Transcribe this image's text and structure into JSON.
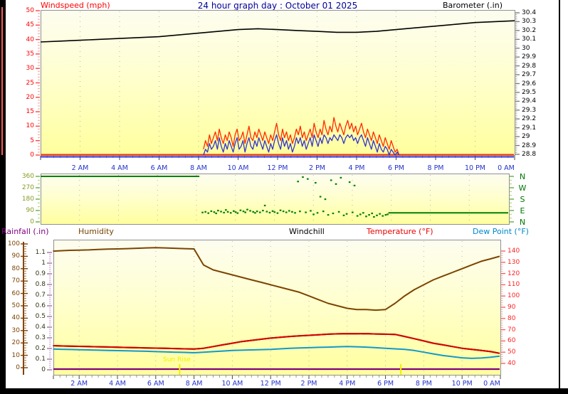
{
  "page": {
    "title": "24 hour graph day : October 01 2025"
  },
  "colors": {
    "title": "#000099",
    "windspeed_axis": "#ff0000",
    "wind_gust_line": "#ff2a00",
    "wind_avg_line": "#3333cc",
    "barometer_line": "#000000",
    "barometer_axis": "#000000",
    "x_labels": "#2233cc",
    "direction_green": "#008000",
    "direction_axis": "#8a9a20",
    "compass_letters": "#007700",
    "rainfall_purple": "#800080",
    "rainfall_axis_numbers": "#333311",
    "humidity_brown": "#7b4400",
    "windchill_black": "#000000",
    "temperature_red": "#dd0000",
    "dewpoint_blue": "#1199cc",
    "sun_marker_yellow": "#f0f000",
    "plot_bg_top": "#fdfdf0",
    "plot_bg_bottom": "#ffff9e"
  },
  "x_axis": {
    "tick_labels": [
      "2 AM",
      "4 AM",
      "6 AM",
      "8 AM",
      "10 AM",
      "12 PM",
      "2 PM",
      "4 PM",
      "6 PM",
      "8 PM",
      "10 PM",
      "0 AM"
    ],
    "tick_hours": [
      2,
      4,
      6,
      8,
      10,
      12,
      14,
      16,
      18,
      20,
      22,
      24
    ]
  },
  "chart_data": [
    {
      "id": "windspeed-barometer",
      "type": "line",
      "title": "24 hour graph day : October 01 2025",
      "left_axis": {
        "label": "Windspeed (mph)",
        "min": 0,
        "max": 50,
        "tick_labels": [
          "50",
          "45",
          "40",
          "35",
          "30",
          "25",
          "20",
          "15",
          "10",
          "5",
          "0"
        ]
      },
      "right_axis": {
        "label": "Barometer (.in)",
        "min": 28.8,
        "max": 30.4,
        "tick_labels": [
          "30.4",
          "30.3",
          "30.2",
          "30.1",
          "30",
          "29.9",
          "29.8",
          "29.7",
          "29.6",
          "29.5",
          "29.4",
          "29.3",
          "29.2",
          "29.1",
          "29",
          "28.9",
          "28.8"
        ]
      },
      "series": [
        {
          "name": "barometer",
          "color": "#000000",
          "t_start": 0,
          "t_step": 1,
          "values": [
            30.07,
            30.08,
            30.09,
            30.1,
            30.11,
            30.12,
            30.13,
            30.15,
            30.17,
            30.19,
            30.21,
            30.22,
            30.21,
            30.2,
            30.19,
            30.18,
            30.18,
            30.19,
            30.21,
            30.23,
            30.25,
            30.27,
            30.29,
            30.3,
            30.31
          ]
        },
        {
          "name": "wind-gust",
          "color": "#ff2a00",
          "t_start": 8.25,
          "t_step": 0.1,
          "values": [
            2,
            5,
            3,
            7,
            4,
            6,
            8,
            5,
            9,
            6,
            4,
            7,
            5,
            8,
            6,
            3,
            7,
            9,
            5,
            6,
            8,
            4,
            7,
            10,
            6,
            5,
            8,
            6,
            9,
            7,
            5,
            8,
            6,
            4,
            7,
            5,
            8,
            11,
            7,
            5,
            9,
            6,
            8,
            5,
            7,
            4,
            6,
            9,
            7,
            10,
            6,
            8,
            5,
            7,
            9,
            6,
            11,
            8,
            6,
            9,
            7,
            12,
            9,
            7,
            10,
            8,
            13,
            10,
            8,
            11,
            9,
            7,
            10,
            12,
            9,
            11,
            8,
            10,
            7,
            9,
            11,
            8,
            6,
            9,
            7,
            5,
            8,
            6,
            4,
            7,
            5,
            3,
            6,
            4,
            2,
            5,
            3,
            1,
            2,
            0
          ]
        },
        {
          "name": "wind-average",
          "color": "#3333cc",
          "t_start": 8.25,
          "t_step": 0.1,
          "values": [
            0,
            2,
            1,
            4,
            2,
            3,
            5,
            2,
            6,
            3,
            1,
            4,
            2,
            5,
            3,
            1,
            4,
            6,
            2,
            3,
            5,
            1,
            4,
            6,
            3,
            2,
            5,
            3,
            6,
            4,
            2,
            5,
            3,
            1,
            4,
            2,
            5,
            7,
            4,
            2,
            6,
            3,
            5,
            2,
            4,
            1,
            3,
            6,
            4,
            6,
            3,
            5,
            2,
            4,
            6,
            3,
            7,
            5,
            3,
            6,
            4,
            7,
            6,
            4,
            6,
            5,
            7,
            6,
            5,
            7,
            6,
            4,
            6,
            7,
            6,
            7,
            5,
            6,
            4,
            6,
            7,
            5,
            3,
            6,
            4,
            2,
            5,
            3,
            1,
            4,
            2,
            1,
            3,
            2,
            0,
            2,
            1,
            0,
            1,
            0
          ]
        }
      ]
    },
    {
      "id": "wind-direction",
      "type": "scatter",
      "left_axis": {
        "min": 0,
        "max": 360,
        "tick_labels": [
          "360",
          "270",
          "180",
          "90",
          "0"
        ]
      },
      "right_axis": {
        "compass_labels": [
          "N",
          "W",
          "S",
          "E",
          "N"
        ]
      },
      "segments": [
        {
          "name": "direction-line-night",
          "value": 360,
          "t0": 0,
          "t1": 8.15
        },
        {
          "name": "direction-line-evening",
          "value": 72,
          "t0": 17.85,
          "t1": 24
        }
      ],
      "dots": [
        [
          8.3,
          75
        ],
        [
          8.45,
          80
        ],
        [
          8.6,
          70
        ],
        [
          8.75,
          85
        ],
        [
          8.9,
          78
        ],
        [
          9.0,
          68
        ],
        [
          9.1,
          90
        ],
        [
          9.25,
          82
        ],
        [
          9.4,
          74
        ],
        [
          9.5,
          95
        ],
        [
          9.6,
          80
        ],
        [
          9.75,
          72
        ],
        [
          9.9,
          86
        ],
        [
          10.0,
          78
        ],
        [
          10.1,
          70
        ],
        [
          10.25,
          92
        ],
        [
          10.4,
          84
        ],
        [
          10.5,
          76
        ],
        [
          10.6,
          98
        ],
        [
          10.75,
          88
        ],
        [
          10.9,
          80
        ],
        [
          11.0,
          72
        ],
        [
          11.1,
          84
        ],
        [
          11.25,
          76
        ],
        [
          11.4,
          90
        ],
        [
          11.5,
          130
        ],
        [
          11.6,
          82
        ],
        [
          11.75,
          74
        ],
        [
          11.9,
          86
        ],
        [
          12.0,
          78
        ],
        [
          12.15,
          70
        ],
        [
          12.3,
          92
        ],
        [
          12.45,
          84
        ],
        [
          12.6,
          76
        ],
        [
          12.75,
          88
        ],
        [
          12.9,
          80
        ],
        [
          13.05,
          72
        ],
        [
          13.2,
          320
        ],
        [
          13.3,
          84
        ],
        [
          13.45,
          355
        ],
        [
          13.6,
          76
        ],
        [
          13.7,
          340
        ],
        [
          13.85,
          88
        ],
        [
          14.0,
          60
        ],
        [
          14.1,
          310
        ],
        [
          14.2,
          72
        ],
        [
          14.35,
          200
        ],
        [
          14.5,
          84
        ],
        [
          14.6,
          180
        ],
        [
          14.75,
          56
        ],
        [
          14.9,
          330
        ],
        [
          15.0,
          68
        ],
        [
          15.15,
          300
        ],
        [
          15.3,
          80
        ],
        [
          15.4,
          350
        ],
        [
          15.55,
          52
        ],
        [
          15.7,
          64
        ],
        [
          15.85,
          315
        ],
        [
          16.0,
          76
        ],
        [
          16.1,
          288
        ],
        [
          16.25,
          48
        ],
        [
          16.4,
          60
        ],
        [
          16.55,
          72
        ],
        [
          16.7,
          44
        ],
        [
          16.85,
          56
        ],
        [
          17.0,
          68
        ],
        [
          17.1,
          40
        ],
        [
          17.25,
          52
        ],
        [
          17.4,
          64
        ],
        [
          17.55,
          48
        ],
        [
          17.7,
          56
        ],
        [
          17.8,
          60
        ]
      ]
    },
    {
      "id": "rain-humidity-temp-dew",
      "type": "line",
      "left_axis_outer": {
        "label": "Humidity",
        "min": 0,
        "max": 100,
        "tick_labels": [
          "100",
          "90",
          "80",
          "70",
          "60",
          "50",
          "40",
          "30",
          "20",
          "10",
          "0"
        ]
      },
      "left_axis_inner": {
        "label": "Rainfall (.in)",
        "min": 0,
        "max": 1.1,
        "tick_labels": [
          "1.1",
          "1",
          "0.9",
          "0.8",
          "0.7",
          "0.6",
          "0.5",
          "0.4",
          "0.3",
          "0.2",
          "0.1",
          "0"
        ]
      },
      "right_axis": {
        "labels": [
          "Windchill",
          "Temperature (°F)",
          "Dew Point (°F)"
        ],
        "min": 40,
        "max": 140,
        "tick_labels": [
          "140",
          "130",
          "120",
          "110",
          "100",
          "90",
          "80",
          "70",
          "60",
          "50",
          "40"
        ]
      },
      "series": [
        {
          "name": "humidity",
          "color": "#7b4400",
          "scale": "humidity",
          "t_start": 0,
          "t_step": 0.5,
          "values": [
            94,
            94.2,
            94.5,
            94.8,
            95,
            95.2,
            95.5,
            95.8,
            96,
            96.2,
            96.5,
            96.8,
            97,
            96.8,
            96.5,
            96.2,
            96,
            83,
            79,
            77,
            75,
            73,
            71,
            69,
            67,
            65,
            63,
            61,
            58,
            55,
            52,
            50,
            48,
            47,
            47,
            46.5,
            47,
            52,
            58,
            63,
            67,
            71,
            74,
            77,
            80,
            83,
            86,
            88,
            90
          ]
        },
        {
          "name": "windchill",
          "color": "#000000",
          "scale": "temp",
          "t_start": 0,
          "t_step": 0.5,
          "values": [
            56,
            55.8,
            55.6,
            55.4,
            55.2,
            55,
            54.8,
            54.6,
            54.4,
            54.2,
            54,
            53.8,
            53.6,
            53.4,
            53.2,
            53,
            52.8,
            53.5,
            55,
            56.5,
            58,
            59.5,
            60.5,
            61.5,
            62.5,
            63.2,
            64,
            64.5,
            65,
            65.5,
            66,
            66.3,
            66.5,
            66.4,
            66.5,
            66.2,
            66,
            65.8,
            64,
            62,
            60,
            58,
            56.5,
            55,
            53.5,
            52.5,
            51.5,
            50.5,
            49
          ]
        },
        {
          "name": "dew-point",
          "color": "#1199cc",
          "scale": "temp",
          "t_start": 0,
          "t_step": 0.5,
          "values": [
            53,
            52.8,
            52.6,
            52.4,
            52.2,
            52,
            51.8,
            51.6,
            51.4,
            51.2,
            51,
            50.8,
            50.5,
            50.3,
            50,
            49.8,
            49.5,
            50,
            50.5,
            51,
            51.5,
            51.8,
            52,
            52.3,
            52.5,
            53,
            53.5,
            53.8,
            54,
            54.3,
            54.5,
            54.8,
            55,
            54.8,
            54.5,
            54,
            53.5,
            53,
            52.5,
            51.5,
            50,
            48.5,
            47,
            46,
            45,
            44.5,
            44.8,
            45.5,
            46.5
          ]
        },
        {
          "name": "temperature",
          "color": "#dd0000",
          "scale": "temp",
          "t_start": 0,
          "t_step": 0.5,
          "values": [
            56,
            55.8,
            55.6,
            55.4,
            55.2,
            55,
            54.8,
            54.6,
            54.4,
            54.2,
            54,
            53.8,
            53.6,
            53.4,
            53.2,
            53,
            52.8,
            53.5,
            55,
            56.5,
            58,
            59.5,
            60.5,
            61.5,
            62.5,
            63.2,
            64,
            64.5,
            65,
            65.5,
            66,
            66.3,
            66.5,
            66.4,
            66.5,
            66.2,
            66,
            65.8,
            64,
            62,
            60,
            58,
            56.5,
            55,
            53.5,
            52.5,
            51.5,
            50.5,
            49
          ]
        },
        {
          "name": "rainfall",
          "color": "#800080",
          "scale": "rain",
          "flat_value": 0
        }
      ],
      "annotations": [
        {
          "name": "sun-rise",
          "label": "Sun Rise",
          "hour": 7.25
        },
        {
          "name": "sun-set",
          "label": "",
          "hour": 18.8
        }
      ]
    }
  ]
}
